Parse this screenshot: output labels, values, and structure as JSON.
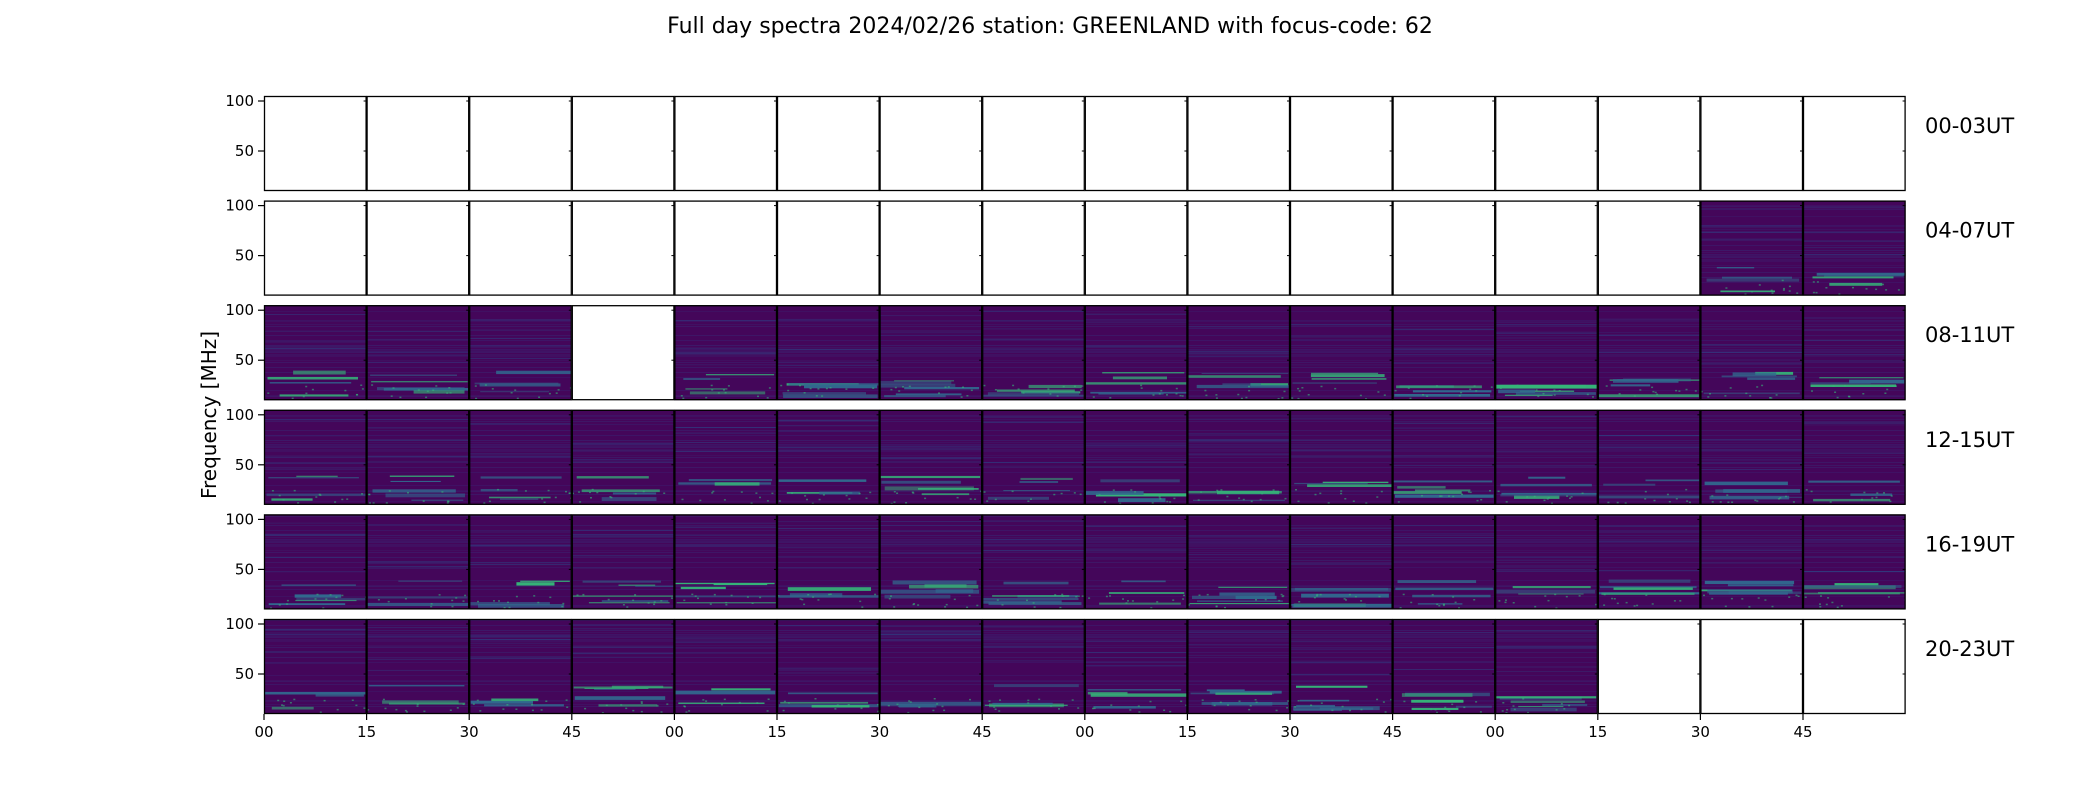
{
  "chart_data": {
    "type": "heatmap",
    "title": "Full day spectra 2024/02/26 station: GREENLAND with focus-code: 62",
    "ylabel": "Frequency [MHz]",
    "xlabel": "",
    "ylim": [
      10,
      105
    ],
    "y_ticks": [
      "100",
      "50"
    ],
    "x_ticks": [
      "00",
      "15",
      "30",
      "45",
      "00",
      "15",
      "30",
      "45",
      "00",
      "15",
      "30",
      "45",
      "00",
      "15",
      "30",
      "45"
    ],
    "colormap": "viridis",
    "rows": [
      {
        "label": "00-03UT",
        "panels": [
          0,
          0,
          0,
          0,
          0,
          0,
          0,
          0,
          0,
          0,
          0,
          0,
          0,
          0,
          0,
          0
        ]
      },
      {
        "label": "04-07UT",
        "panels": [
          0,
          0,
          0,
          0,
          0,
          0,
          0,
          0,
          0,
          0,
          0,
          0,
          0,
          0,
          1,
          1
        ]
      },
      {
        "label": "08-11UT",
        "panels": [
          1,
          1,
          1,
          0,
          1,
          1,
          1,
          1,
          1,
          1,
          1,
          1,
          1,
          1,
          1,
          1
        ]
      },
      {
        "label": "12-15UT",
        "panels": [
          1,
          1,
          1,
          1,
          1,
          1,
          1,
          1,
          1,
          1,
          1,
          1,
          1,
          1,
          1,
          1
        ]
      },
      {
        "label": "16-19UT",
        "panels": [
          1,
          1,
          1,
          1,
          1,
          1,
          1,
          1,
          1,
          1,
          1,
          1,
          1,
          1,
          1,
          1
        ]
      },
      {
        "label": "20-23UT",
        "panels": [
          1,
          1,
          1,
          1,
          1,
          1,
          1,
          1,
          1,
          1,
          1,
          1,
          1,
          0,
          0,
          0
        ]
      }
    ],
    "colors": {
      "background": "#44065a",
      "mid": "#31688e",
      "bright": "#35b779",
      "peak": "#90d743",
      "empty": "#ffffff"
    }
  }
}
